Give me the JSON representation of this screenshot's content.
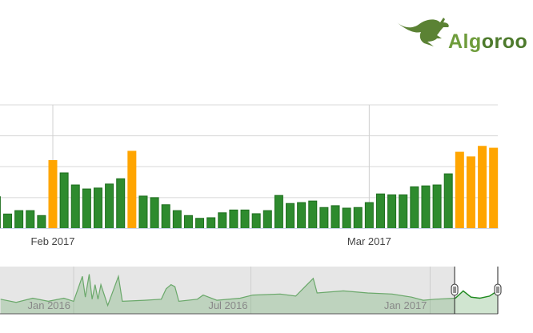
{
  "logo": {
    "text_part1": "Alg",
    "text_part2": "oroo",
    "color": "#5b8234"
  },
  "chart_data": {
    "type": "bar",
    "title": "",
    "xlabel": "",
    "ylabel": "",
    "ylim": [
      0,
      4
    ],
    "grid": true,
    "colors": {
      "normal": "#2e8b2e",
      "normal_border": "#1e6e1e",
      "highlight": "#ffa500"
    },
    "x_tick_labels": [
      {
        "date": "2017-02-01",
        "label": "Feb 2017"
      },
      {
        "date": "2017-03-01",
        "label": "Mar 2017"
      }
    ],
    "categories": [
      "2017-01-27",
      "2017-01-28",
      "2017-01-29",
      "2017-01-30",
      "2017-01-31",
      "2017-02-01",
      "2017-02-02",
      "2017-02-03",
      "2017-02-04",
      "2017-02-05",
      "2017-02-06",
      "2017-02-07",
      "2017-02-08",
      "2017-02-09",
      "2017-02-10",
      "2017-02-11",
      "2017-02-12",
      "2017-02-13",
      "2017-02-14",
      "2017-02-15",
      "2017-02-16",
      "2017-02-17",
      "2017-02-18",
      "2017-02-19",
      "2017-02-20",
      "2017-02-21",
      "2017-02-22",
      "2017-02-23",
      "2017-02-24",
      "2017-02-25",
      "2017-02-26",
      "2017-02-27",
      "2017-02-28",
      "2017-03-01",
      "2017-03-02",
      "2017-03-03",
      "2017-03-04",
      "2017-03-05",
      "2017-03-06",
      "2017-03-07",
      "2017-03-08",
      "2017-03-09",
      "2017-03-10",
      "2017-03-11",
      "2017-03-12"
    ],
    "values": [
      1.03,
      0.47,
      0.58,
      0.58,
      0.42,
      2.2,
      1.8,
      1.41,
      1.28,
      1.31,
      1.44,
      1.61,
      2.5,
      1.05,
      1.0,
      0.77,
      0.58,
      0.42,
      0.33,
      0.35,
      0.51,
      0.6,
      0.6,
      0.48,
      0.58,
      1.07,
      0.81,
      0.84,
      0.89,
      0.68,
      0.74,
      0.66,
      0.68,
      0.84,
      1.12,
      1.09,
      1.09,
      1.35,
      1.38,
      1.41,
      1.77,
      2.47,
      2.32,
      2.66,
      2.6
    ],
    "highlighted": [
      false,
      false,
      false,
      false,
      false,
      true,
      false,
      false,
      false,
      false,
      false,
      false,
      true,
      false,
      false,
      false,
      false,
      false,
      false,
      false,
      false,
      false,
      false,
      false,
      false,
      false,
      false,
      false,
      false,
      false,
      false,
      false,
      false,
      false,
      false,
      false,
      false,
      false,
      false,
      false,
      false,
      true,
      true,
      true,
      true
    ],
    "navigator": {
      "type": "area",
      "selected_range": [
        "2017-01-27",
        "2017-03-12"
      ],
      "x_tick_labels": [
        {
          "date": "2016-01-01",
          "label": "Jan 2016"
        },
        {
          "date": "2016-07-01",
          "label": "Jul 2016"
        },
        {
          "date": "2017-01-01",
          "label": "Jan 2017"
        }
      ],
      "line_color": "#6aa86a",
      "selected_line_color": "#1f8a1f",
      "points": [
        [
          "2015-10-18",
          0.7
        ],
        [
          "2015-11-03",
          0.55
        ],
        [
          "2015-11-20",
          0.75
        ],
        [
          "2015-12-06",
          0.6
        ],
        [
          "2015-12-22",
          0.75
        ],
        [
          "2016-01-01",
          0.6
        ],
        [
          "2016-01-10",
          1.8
        ],
        [
          "2016-01-13",
          0.8
        ],
        [
          "2016-01-17",
          1.9
        ],
        [
          "2016-01-20",
          0.7
        ],
        [
          "2016-01-23",
          1.4
        ],
        [
          "2016-01-26",
          0.7
        ],
        [
          "2016-01-29",
          1.4
        ],
        [
          "2016-02-05",
          0.4
        ],
        [
          "2016-02-16",
          1.8
        ],
        [
          "2016-02-20",
          0.6
        ],
        [
          "2016-03-14",
          0.65
        ],
        [
          "2016-03-31",
          0.7
        ],
        [
          "2016-04-05",
          1.2
        ],
        [
          "2016-04-10",
          1.4
        ],
        [
          "2016-04-14",
          1.3
        ],
        [
          "2016-04-18",
          0.6
        ],
        [
          "2016-05-07",
          0.7
        ],
        [
          "2016-05-13",
          0.9
        ],
        [
          "2016-05-27",
          0.65
        ],
        [
          "2016-06-20",
          0.75
        ],
        [
          "2016-07-03",
          0.9
        ],
        [
          "2016-07-31",
          0.95
        ],
        [
          "2016-08-16",
          0.85
        ],
        [
          "2016-09-03",
          1.7
        ],
        [
          "2016-09-07",
          1.0
        ],
        [
          "2016-10-04",
          1.1
        ],
        [
          "2016-10-29",
          1.0
        ],
        [
          "2016-11-23",
          0.95
        ],
        [
          "2016-12-13",
          0.8
        ],
        [
          "2016-12-25",
          0.65
        ],
        [
          "2017-01-06",
          0.7
        ],
        [
          "2017-01-27",
          0.75
        ],
        [
          "2017-02-04",
          1.1
        ],
        [
          "2017-02-12",
          0.8
        ],
        [
          "2017-02-21",
          0.75
        ],
        [
          "2017-03-03",
          0.85
        ],
        [
          "2017-03-11",
          1.1
        ]
      ]
    }
  }
}
